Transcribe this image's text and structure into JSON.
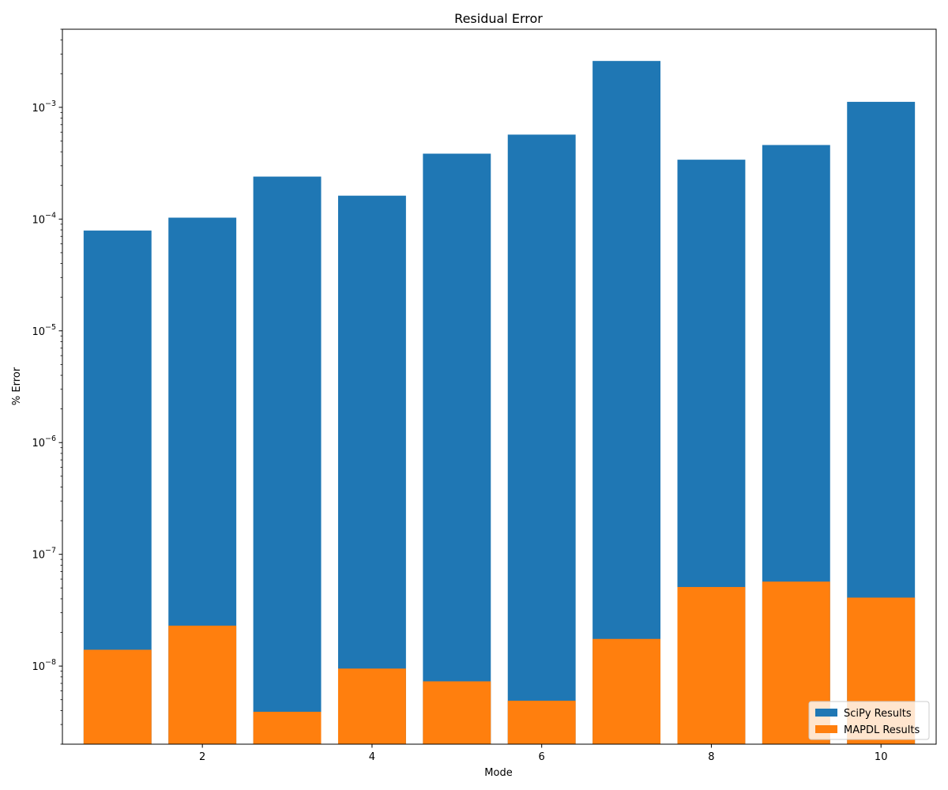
{
  "chart_data": {
    "type": "bar",
    "title": "Residual Error",
    "xlabel": "Mode",
    "ylabel": "% Error",
    "yscale": "log",
    "ylim": [
      2e-09,
      0.005
    ],
    "xlim": [
      0.35,
      10.65
    ],
    "xticks": [
      2,
      4,
      6,
      8,
      10
    ],
    "xtick_labels": [
      "2",
      "4",
      "6",
      "8",
      "10"
    ],
    "yticks": [
      1e-08,
      1e-07,
      1e-06,
      1e-05,
      0.0001,
      0.001
    ],
    "ytick_labels": [
      {
        "base": "10",
        "exp": "−8"
      },
      {
        "base": "10",
        "exp": "−7"
      },
      {
        "base": "10",
        "exp": "−6"
      },
      {
        "base": "10",
        "exp": "−5"
      },
      {
        "base": "10",
        "exp": "−4"
      },
      {
        "base": "10",
        "exp": "−3"
      }
    ],
    "x": [
      1,
      2,
      3,
      4,
      5,
      6,
      7,
      8,
      9,
      10
    ],
    "bar_width": 0.8,
    "grid": false,
    "legend_position": "lower right",
    "series": [
      {
        "name": "SciPy Results",
        "color": "#1f77b4",
        "values": [
          7.9e-05,
          0.000103,
          0.00024,
          0.000162,
          0.000385,
          0.00057,
          0.0026,
          0.00034,
          0.00046,
          0.00112
        ]
      },
      {
        "name": "MAPDL Results",
        "color": "#ff7f0e",
        "values": [
          1.4e-08,
          2.3e-08,
          3.9e-09,
          9.5e-09,
          7.3e-09,
          4.9e-09,
          1.75e-08,
          5.1e-08,
          5.7e-08,
          4.1e-08
        ]
      }
    ]
  }
}
